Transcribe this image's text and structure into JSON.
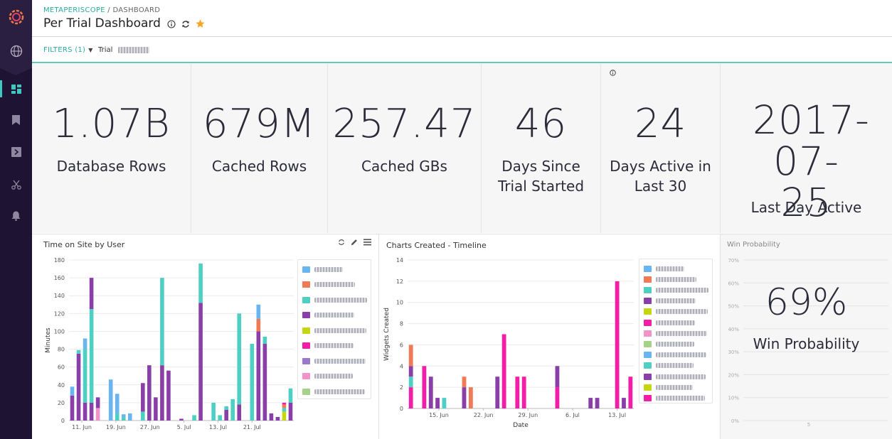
{
  "breadcrumb": {
    "app": "METAPERISCOPE",
    "separator": " / ",
    "section": "DASHBOARD"
  },
  "title": "Per Trial Dashboard",
  "filters": {
    "label": "FILTERS (1)",
    "trial_label": "Trial"
  },
  "kpis": [
    {
      "value": "1.07B",
      "label": "Database Rows"
    },
    {
      "value": "679M",
      "label": "Cached Rows"
    },
    {
      "value": "257.47",
      "label": "Cached GBs"
    },
    {
      "value": "46",
      "label": "Days Since Trial Started"
    },
    {
      "value": "24",
      "label": "Days Active in Last 30"
    },
    {
      "value": "2017-07-25",
      "label": "Last Day Active"
    }
  ],
  "colors": {
    "teal": "#4dcfc4",
    "purple": "#8a3fa8",
    "blue": "#6ab4ef",
    "orange": "#f07a55",
    "pink": "#f21ea8",
    "lime": "#c6d610",
    "lavender": "#9a79c9",
    "lightpink": "#ef93c9",
    "green": "#a6d18a",
    "sidebar": "#1e1333",
    "accent": "#2aa9a0"
  },
  "panels": {
    "time_on_site": {
      "title": "Time on Site by User"
    },
    "charts_created": {
      "title": "Charts Created - Timeline"
    },
    "win_probability": {
      "title": "Win Probability",
      "value": "69%",
      "label": "Win Probability"
    }
  },
  "chart_data": [
    {
      "type": "bar",
      "title": "Time on Site by User",
      "ylabel": "Minutes",
      "xlabel": "",
      "ylim": [
        0,
        180
      ],
      "yticks": [
        0,
        20,
        40,
        60,
        80,
        100,
        120,
        140,
        160,
        180
      ],
      "xticks": [
        "11. Jun",
        "19. Jun",
        "27. Jun",
        "5. Jul",
        "13. Jul",
        "21. Jul"
      ],
      "legend_colors": [
        "blue",
        "orange",
        "teal",
        "purple",
        "lime",
        "pink",
        "lavender",
        "lightpink",
        "green"
      ],
      "stacks": [
        [
          [
            "purple",
            28
          ],
          [
            "blue",
            10
          ]
        ],
        [
          [
            "purple",
            75
          ],
          [
            "teal",
            4
          ]
        ],
        [
          [
            "purple",
            20
          ],
          [
            "teal",
            60
          ],
          [
            "blue",
            12
          ]
        ],
        [
          [
            "purple",
            20
          ],
          [
            "teal",
            105
          ],
          [
            "purple",
            35
          ]
        ],
        [
          [
            "lightpink",
            14
          ],
          [
            "purple",
            12
          ]
        ],
        [],
        [
          [
            "blue",
            46
          ]
        ],
        [
          [
            "teal",
            8
          ],
          [
            "blue",
            22
          ]
        ],
        [
          [
            "teal",
            4
          ],
          [
            "blue",
            3
          ]
        ],
        [
          [
            "blue",
            8
          ]
        ],
        [],
        [
          [
            "teal",
            10
          ],
          [
            "purple",
            32
          ]
        ],
        [
          [
            "purple",
            62
          ]
        ],
        [
          [
            "purple",
            26
          ]
        ],
        [
          [
            "purple",
            62
          ],
          [
            "teal",
            98
          ]
        ],
        [
          [
            "purple",
            56
          ]
        ],
        [],
        [
          [
            "purple",
            2
          ]
        ],
        [],
        [
          [
            "teal",
            6
          ]
        ],
        [
          [
            "purple",
            132
          ],
          [
            "teal",
            44
          ]
        ],
        [],
        [
          [
            "teal",
            20
          ]
        ],
        [
          [
            "teal",
            6
          ]
        ],
        [
          [
            "purple",
            12
          ],
          [
            "teal",
            4
          ]
        ],
        [
          [
            "teal",
            24
          ]
        ],
        [
          [
            "purple",
            18
          ],
          [
            "teal",
            102
          ]
        ],
        [],
        [
          [
            "teal",
            86
          ]
        ],
        [
          [
            "purple",
            100
          ],
          [
            "orange",
            14
          ],
          [
            "blue",
            16
          ]
        ],
        [
          [
            "purple",
            86
          ],
          [
            "teal",
            8
          ]
        ],
        [
          [
            "purple",
            8
          ]
        ],
        [
          [
            "purple",
            4
          ]
        ],
        [
          [
            "lime",
            10
          ],
          [
            "teal",
            4
          ],
          [
            "orange",
            4
          ],
          [
            "pink",
            2
          ]
        ],
        [
          [
            "purple",
            20
          ],
          [
            "teal",
            16
          ]
        ]
      ]
    },
    {
      "type": "bar",
      "title": "Charts Created - Timeline",
      "ylabel": "Widgets Created",
      "xlabel": "Date",
      "ylim": [
        0,
        14
      ],
      "yticks": [
        0,
        2,
        4,
        6,
        8,
        10,
        12,
        14
      ],
      "xticks": [
        "15. Jun",
        "22. Jun",
        "29. Jun",
        "6. Jul",
        "13. Jul"
      ],
      "legend_colors": [
        "blue",
        "orange",
        "teal",
        "purple",
        "lime",
        "pink",
        "lightpink",
        "green",
        "blue",
        "teal",
        "purple",
        "lime",
        "pink"
      ],
      "stacks": [
        [
          [
            "pink",
            2
          ],
          [
            "teal",
            1
          ],
          [
            "purple",
            1
          ],
          [
            "orange",
            2
          ]
        ],
        [],
        [
          [
            "pink",
            4
          ]
        ],
        [
          [
            "purple",
            3
          ]
        ],
        [
          [
            "purple",
            1
          ]
        ],
        [
          [
            "teal",
            1
          ]
        ],
        [],
        [],
        [
          [
            "purple",
            2
          ],
          [
            "orange",
            1
          ]
        ],
        [
          [
            "orange",
            2
          ]
        ],
        [],
        [],
        [],
        [
          [
            "purple",
            3
          ]
        ],
        [
          [
            "pink",
            7
          ]
        ],
        [],
        [
          [
            "pink",
            3
          ]
        ],
        [
          [
            "pink",
            3
          ]
        ],
        [],
        [],
        [],
        [],
        [
          [
            "pink",
            2
          ],
          [
            "purple",
            2
          ]
        ],
        [],
        [],
        [],
        [],
        [
          [
            "purple",
            1
          ]
        ],
        [
          [
            "purple",
            1
          ]
        ],
        [],
        [],
        [
          [
            "pink",
            12
          ]
        ],
        [
          [
            "purple",
            1
          ]
        ],
        [
          [
            "pink",
            3
          ]
        ]
      ]
    },
    {
      "type": "line",
      "title": "Win Probability",
      "ylim": [
        0,
        70
      ],
      "yticks": [
        "0%",
        "10%",
        "20%",
        "30%",
        "40%",
        "50%",
        "60%",
        "70%"
      ],
      "xticks": [
        "5"
      ]
    }
  ]
}
